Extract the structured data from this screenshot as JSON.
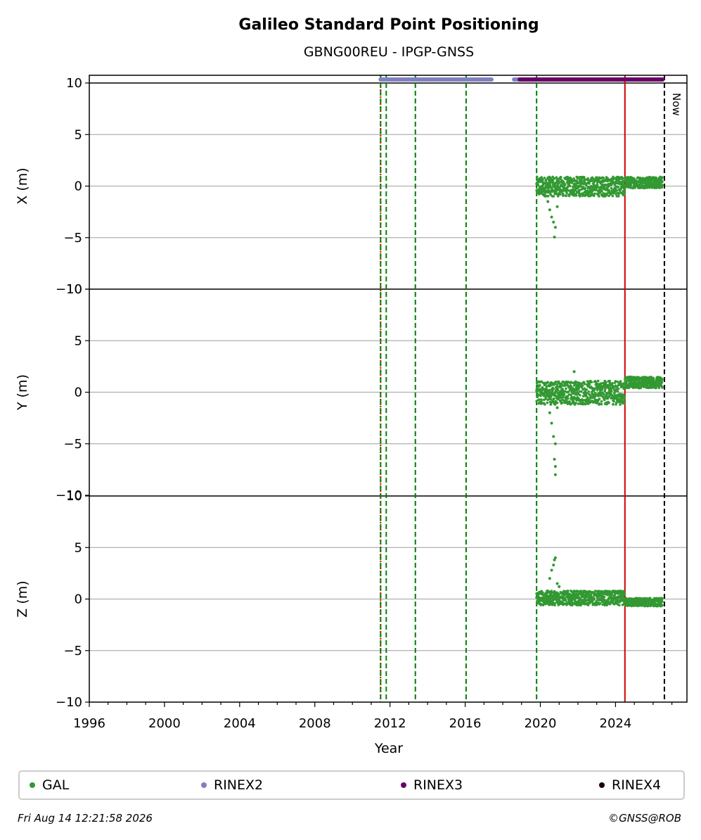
{
  "chart_data": {
    "type": "scatter",
    "title": "Galileo Standard Point Positioning",
    "subtitle": "GBNG00REU - IPGP-GNSS",
    "xlabel": "Year",
    "xlim": [
      1996,
      2027.8
    ],
    "xticks": [
      "1996",
      "2000",
      "2004",
      "2008",
      "2012",
      "2016",
      "2020",
      "2024"
    ],
    "yticks": [
      "10",
      "5",
      "0",
      "−5",
      "−10"
    ],
    "ylim": [
      -10,
      10
    ],
    "grid": "horizontal",
    "panels": [
      {
        "id": "x",
        "ylabel": "X (m)",
        "band": [
          -1.0,
          0.9
        ],
        "late_band": [
          -0.2,
          0.9
        ],
        "outliers": [
          [
            2020.4,
            -1.5
          ],
          [
            2020.5,
            -2.3
          ],
          [
            2020.6,
            -3.0
          ],
          [
            2020.7,
            -3.5
          ],
          [
            2020.8,
            -4.0
          ],
          [
            2020.75,
            -4.95
          ],
          [
            2020.9,
            -2.0
          ]
        ]
      },
      {
        "id": "y",
        "ylabel": "Y (m)",
        "band": [
          -1.2,
          1.1
        ],
        "late_band": [
          0.4,
          1.5
        ],
        "outliers": [
          [
            2020.5,
            -2.0
          ],
          [
            2020.6,
            -3.0
          ],
          [
            2020.7,
            -4.3
          ],
          [
            2020.8,
            -5.0
          ],
          [
            2020.75,
            -6.5
          ],
          [
            2020.8,
            -7.2
          ],
          [
            2020.8,
            -8.0
          ],
          [
            2021.8,
            2.0
          ],
          [
            2020.9,
            -1.5
          ]
        ]
      },
      {
        "id": "z",
        "ylabel": "Z (m)",
        "band": [
          -0.6,
          0.8
        ],
        "late_band": [
          -0.7,
          0.1
        ],
        "outliers": [
          [
            2020.5,
            2.0
          ],
          [
            2020.6,
            2.8
          ],
          [
            2020.7,
            3.3
          ],
          [
            2020.8,
            4.0
          ],
          [
            2020.75,
            3.8
          ],
          [
            2020.9,
            1.5
          ],
          [
            2021.0,
            1.2
          ]
        ]
      }
    ],
    "gal_range": [
      2019.8,
      2026.5
    ],
    "vlines": [
      {
        "x": 2011.5,
        "color": "#cc0000",
        "style": "dashed-red"
      },
      {
        "x": 2011.5,
        "color": "#008000",
        "style": "dashed"
      },
      {
        "x": 2011.8,
        "color": "#008000",
        "style": "dashed"
      },
      {
        "x": 2013.35,
        "color": "#008000",
        "style": "dashed"
      },
      {
        "x": 2016.05,
        "color": "#008000",
        "style": "dashed"
      },
      {
        "x": 2019.8,
        "color": "#008000",
        "style": "dashed"
      },
      {
        "x": 2024.5,
        "color": "#d00000",
        "style": "solid"
      },
      {
        "x": 2026.6,
        "color": "#000000",
        "style": "dashed"
      }
    ],
    "now_label": "Now",
    "rinex_bars": [
      {
        "name": "RINEX2",
        "from": 2011.5,
        "to": 2017.4,
        "color": "#8080c0"
      },
      {
        "name": "RINEX2",
        "from": 2018.6,
        "to": 2018.9,
        "color": "#8080c0"
      },
      {
        "name": "RINEX3",
        "from": 2018.9,
        "to": 2026.5,
        "color": "#6a0066"
      }
    ],
    "legend": [
      {
        "label": "GAL",
        "color": "#339933"
      },
      {
        "label": "RINEX2",
        "color": "#8080c0"
      },
      {
        "label": "RINEX3",
        "color": "#6a0066"
      },
      {
        "label": "RINEX4",
        "color": "#1a0010"
      }
    ]
  },
  "footer": {
    "timestamp": "Fri Aug 14 12:21:58 2026",
    "copyright": "©GNSS@ROB"
  }
}
